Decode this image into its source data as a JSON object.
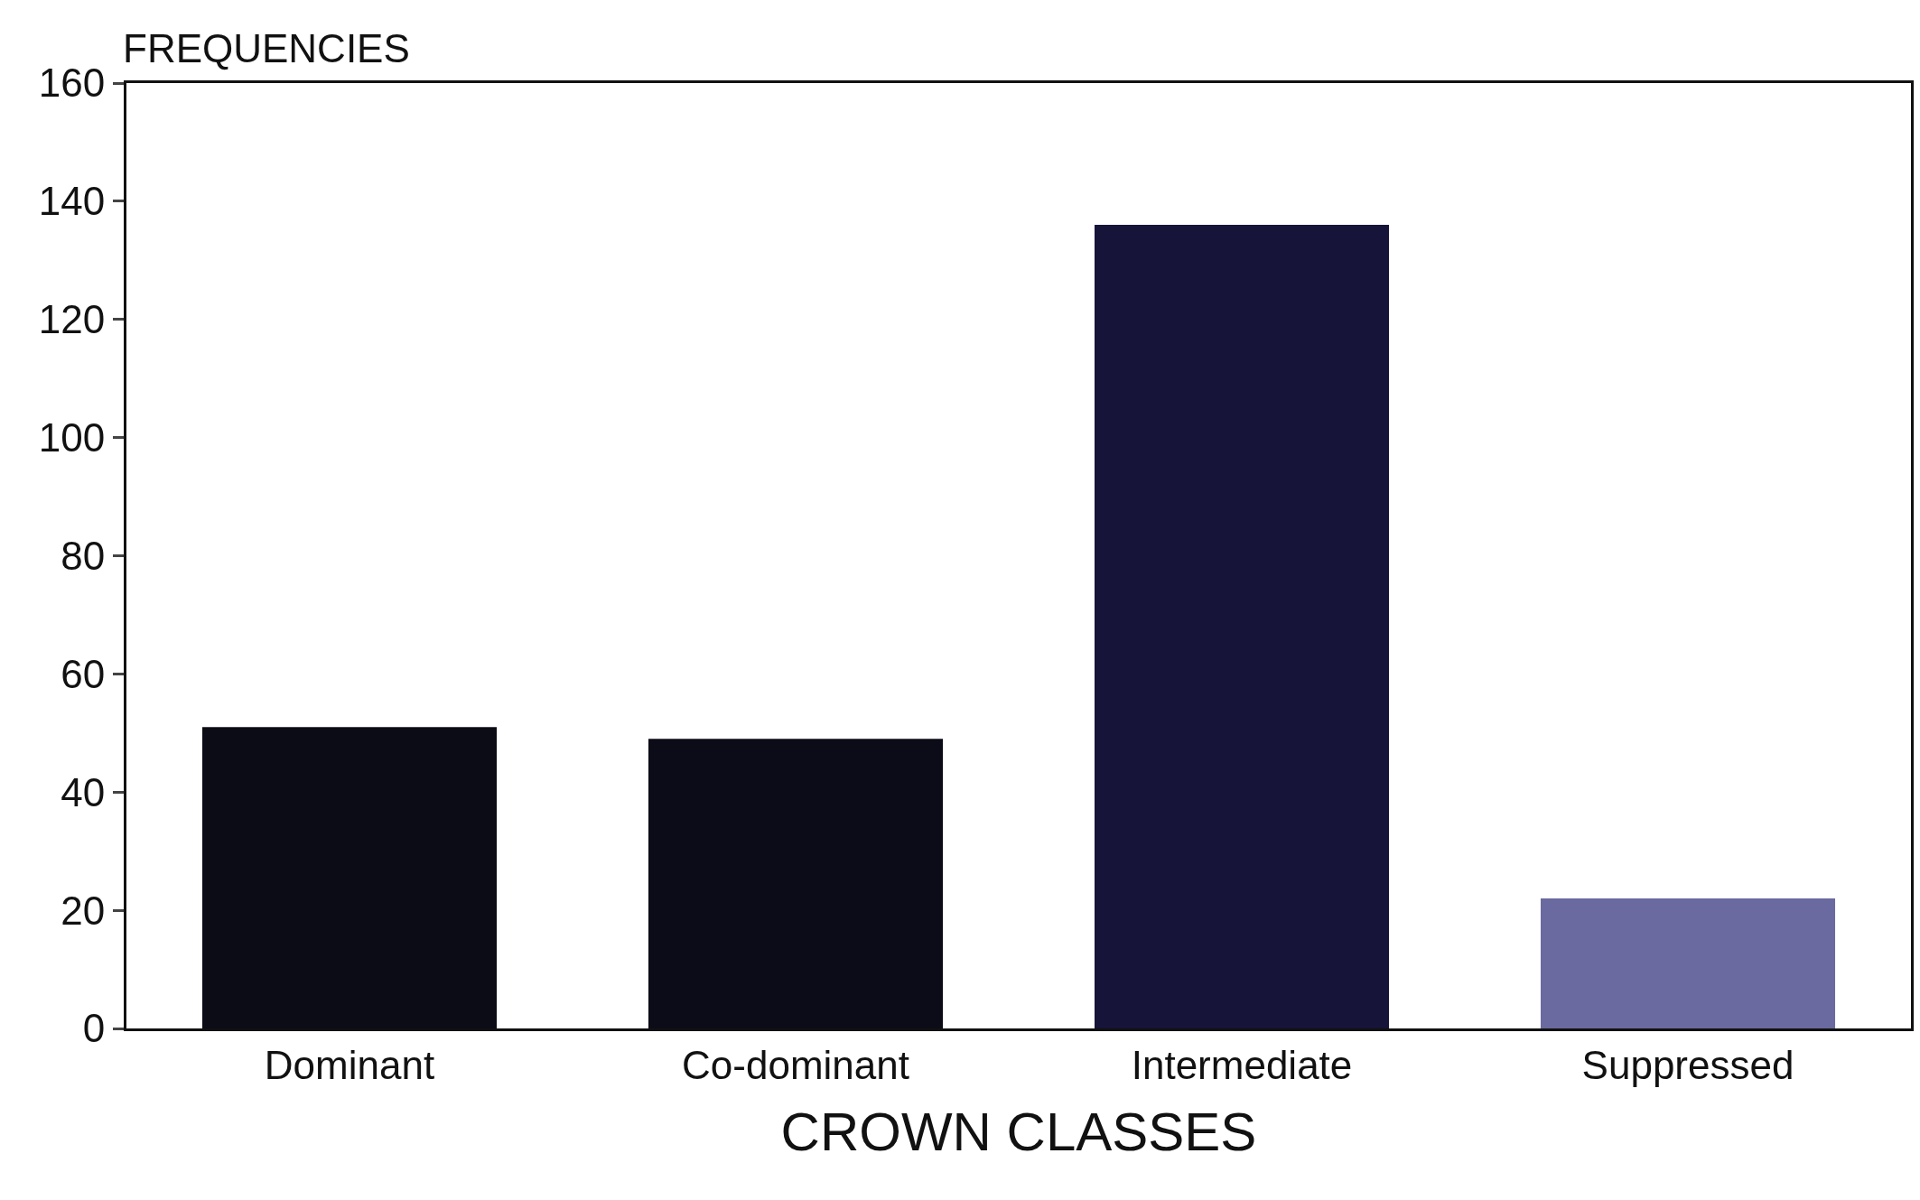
{
  "chart_data": {
    "type": "bar",
    "xlabel": "CROWN CLASSES",
    "ylabel": "FREQUENCIES",
    "categories": [
      "Dominant",
      "Co-dominant",
      "Intermediate",
      "Suppressed"
    ],
    "values": [
      51,
      49,
      136,
      22
    ],
    "colors": [
      "#0c0c16",
      "#0c0c18",
      "#17143a",
      "#6a6aa0"
    ],
    "ylim": [
      0,
      160
    ],
    "yticks": [
      0,
      20,
      40,
      60,
      80,
      100,
      120,
      140,
      160
    ],
    "grid": false
  }
}
